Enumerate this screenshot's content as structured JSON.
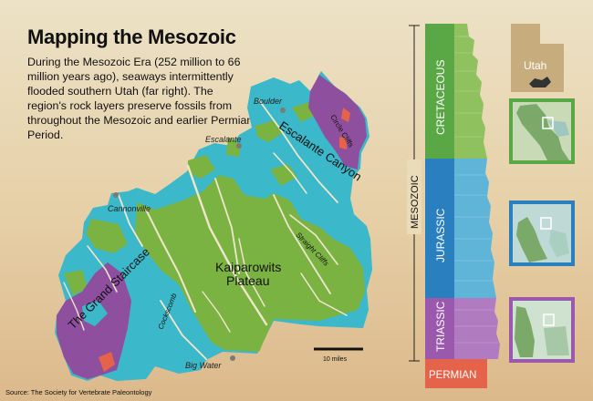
{
  "header": {
    "title": "Mapping the Mesozoic",
    "description": "During the Mesozoic Era (252 million to 66 million years ago), seaways intermittently flooded southern Utah (far right). The region's rock layers preserve fossils from throughout the Mesozoic and earlier Permian Period."
  },
  "map": {
    "towns": [
      "Boulder",
      "Escalante",
      "Cannonville",
      "Big Water"
    ],
    "regions": [
      "Escalante Canyon",
      "Circle Cliffs",
      "Kaiparowits",
      "Plateau",
      "The Grand Staircase",
      "Cockscomb",
      "Straight Cliffs"
    ],
    "scale_label": "10 miles",
    "colors": {
      "cretaceous": "#7bb343",
      "jurassic": "#3bb8c9",
      "triassic": "#8e4f9e",
      "permian": "#e4634a",
      "background": "#ece2c6"
    }
  },
  "timeline": {
    "era_label": "MESOZOIC",
    "periods": [
      "CRETACEOUS",
      "JURASSIC",
      "TRIASSIC",
      "PERMIAN"
    ]
  },
  "inset": {
    "state_label": "Utah"
  },
  "source": "Source: The Society for Vertebrate Paleontology"
}
